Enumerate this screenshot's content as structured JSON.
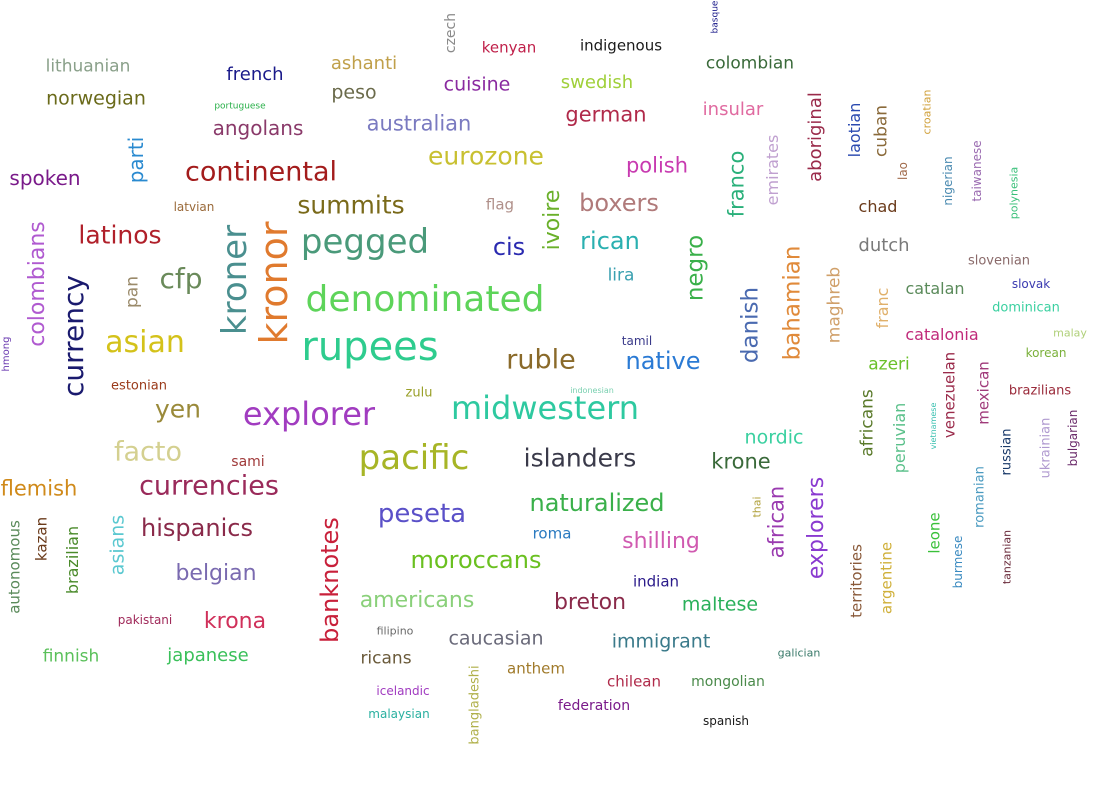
{
  "words": [
    {
      "text": "rupees",
      "color": "#2ecc8e"
    },
    {
      "text": "denominated",
      "color": "#5ed45a"
    },
    {
      "text": "kronor",
      "color": "#e07a2e"
    },
    {
      "text": "kroner",
      "color": "#4a8f8f"
    },
    {
      "text": "pegged",
      "color": "#4a9a7a"
    },
    {
      "text": "explorer",
      "color": "#a13cc0"
    },
    {
      "text": "pacific",
      "color": "#a7b526"
    },
    {
      "text": "midwestern",
      "color": "#2ec9a0"
    },
    {
      "text": "currency",
      "color": "#1a1a6e"
    },
    {
      "text": "asian",
      "color": "#d4c21a"
    },
    {
      "text": "continental",
      "color": "#a31c1c"
    },
    {
      "text": "ruble",
      "color": "#8a6a2a"
    },
    {
      "text": "native",
      "color": "#2a7ad4"
    },
    {
      "text": "islanders",
      "color": "#3a3a4a"
    },
    {
      "text": "currencies",
      "color": "#9a2a5a"
    },
    {
      "text": "cfp",
      "color": "#6a8a5a"
    },
    {
      "text": "summits",
      "color": "#7a6a1a"
    },
    {
      "text": "eurozone",
      "color": "#c8c030"
    },
    {
      "text": "latinos",
      "color": "#b0202a"
    },
    {
      "text": "colombians",
      "color": "#b05ad0"
    },
    {
      "text": "yen",
      "color": "#9a8a3a"
    },
    {
      "text": "facto",
      "color": "#d4d090"
    },
    {
      "text": "naturalized",
      "color": "#3ab04a"
    },
    {
      "text": "peseta",
      "color": "#5a50c8"
    },
    {
      "text": "banknotes",
      "color": "#c8203a"
    },
    {
      "text": "hispanics",
      "color": "#8a2a4a"
    },
    {
      "text": "moroccans",
      "color": "#6ac020"
    },
    {
      "text": "cis",
      "color": "#2a2ab0"
    },
    {
      "text": "rican",
      "color": "#2ab0b0"
    },
    {
      "text": "boxers",
      "color": "#b07a7a"
    },
    {
      "text": "ivoire",
      "color": "#6ab02a"
    },
    {
      "text": "negro",
      "color": "#3ab04a"
    },
    {
      "text": "danish",
      "color": "#4a6ab0"
    },
    {
      "text": "bahamian",
      "color": "#e08a3a"
    },
    {
      "text": "franco",
      "color": "#2ab07a"
    },
    {
      "text": "explorers",
      "color": "#8a3ad0"
    },
    {
      "text": "african",
      "color": "#9a3ab0"
    },
    {
      "text": "shilling",
      "color": "#d05ab0"
    },
    {
      "text": "breton",
      "color": "#8a2a4a"
    },
    {
      "text": "americans",
      "color": "#8ad07a"
    },
    {
      "text": "krona",
      "color": "#d0305a"
    },
    {
      "text": "belgian",
      "color": "#7a6ab0"
    },
    {
      "text": "flemish",
      "color": "#d08a1a"
    },
    {
      "text": "asians",
      "color": "#5ac8d0"
    },
    {
      "text": "australian",
      "color": "#7a7ac0"
    },
    {
      "text": "german",
      "color": "#b02a4a"
    },
    {
      "text": "cuisine",
      "color": "#8a2aa0"
    },
    {
      "text": "polish",
      "color": "#c83ab0"
    },
    {
      "text": "krone",
      "color": "#3a6a3a"
    },
    {
      "text": "nordic",
      "color": "#3ad0a0"
    },
    {
      "text": "immigrant",
      "color": "#3a7a8a"
    },
    {
      "text": "caucasian",
      "color": "#6a6a7a"
    },
    {
      "text": "maltese",
      "color": "#2ab05a"
    },
    {
      "text": "japanese",
      "color": "#3ac05a"
    },
    {
      "text": "finnish",
      "color": "#5ac05a"
    },
    {
      "text": "angolans",
      "color": "#8a3a6a"
    },
    {
      "text": "norwegian",
      "color": "#6a6a1a"
    },
    {
      "text": "lithuanian",
      "color": "#8aa08a"
    },
    {
      "text": "french",
      "color": "#1a1a8a"
    },
    {
      "text": "spoken",
      "color": "#7a1a8a"
    },
    {
      "text": "parti",
      "color": "#2a8ad0"
    },
    {
      "text": "peso",
      "color": "#6a6a4a"
    },
    {
      "text": "ashanti",
      "color": "#c0a04a"
    },
    {
      "text": "swedish",
      "color": "#a0d03a"
    },
    {
      "text": "insular",
      "color": "#e06aa0"
    },
    {
      "text": "colombian",
      "color": "#3a6a3a"
    },
    {
      "text": "aboriginal",
      "color": "#9a2a4a"
    },
    {
      "text": "emirates",
      "color": "#c0a0d0"
    },
    {
      "text": "laotian",
      "color": "#2a4ab0"
    },
    {
      "text": "cuban",
      "color": "#8a6a3a"
    },
    {
      "text": "maghreb",
      "color": "#d0a06a"
    },
    {
      "text": "dutch",
      "color": "#7a7a7a"
    },
    {
      "text": "chad",
      "color": "#6a3a1a"
    },
    {
      "text": "franc",
      "color": "#e0b06a"
    },
    {
      "text": "catalan",
      "color": "#5a8a5a"
    },
    {
      "text": "catalonia",
      "color": "#c02a7a"
    },
    {
      "text": "azeri",
      "color": "#6ac02a"
    },
    {
      "text": "africans",
      "color": "#5a7a2a"
    },
    {
      "text": "peruvian",
      "color": "#5ac08a"
    },
    {
      "text": "venezuelan",
      "color": "#9a2a4a"
    },
    {
      "text": "mexican",
      "color": "#a03a7a"
    },
    {
      "text": "territories",
      "color": "#8a5a3a"
    },
    {
      "text": "argentine",
      "color": "#d0b03a"
    },
    {
      "text": "leone",
      "color": "#3ac03a"
    },
    {
      "text": "burmese",
      "color": "#3a8ac0"
    },
    {
      "text": "romanian",
      "color": "#4a9ac0"
    },
    {
      "text": "russian",
      "color": "#1a3a6a"
    },
    {
      "text": "ukrainian",
      "color": "#b09ad0"
    },
    {
      "text": "bulgarian",
      "color": "#6a2a6a"
    },
    {
      "text": "tanzanian",
      "color": "#6a2a3a"
    },
    {
      "text": "brazilians",
      "color": "#9a2a3a"
    },
    {
      "text": "korean",
      "color": "#7ab03a"
    },
    {
      "text": "malay",
      "color": "#b0d07a"
    },
    {
      "text": "dominican",
      "color": "#3ad0a0"
    },
    {
      "text": "slovak",
      "color": "#3a3ab0"
    },
    {
      "text": "slovenian",
      "color": "#8a6a6a"
    },
    {
      "text": "nigerian",
      "color": "#4a8ab0"
    },
    {
      "text": "taiwanese",
      "color": "#9a6ab0"
    },
    {
      "text": "polynesia",
      "color": "#3ac07a"
    },
    {
      "text": "croatian",
      "color": "#d0a03a"
    },
    {
      "text": "lao",
      "color": "#a06a4a"
    },
    {
      "text": "basque",
      "color": "#1a1a8a"
    },
    {
      "text": "indigenous",
      "color": "#1a1a1a"
    },
    {
      "text": "kenyan",
      "color": "#c0204a"
    },
    {
      "text": "czech",
      "color": "#8a8a8a"
    },
    {
      "text": "portuguese",
      "color": "#2ab04a"
    },
    {
      "text": "latvian",
      "color": "#9a6a3a"
    },
    {
      "text": "flag",
      "color": "#b0908a"
    },
    {
      "text": "lira",
      "color": "#3aa0b0"
    },
    {
      "text": "tamil",
      "color": "#3a3a8a"
    },
    {
      "text": "indonesian",
      "color": "#7ad0b0"
    },
    {
      "text": "pan",
      "color": "#9a8a6a"
    },
    {
      "text": "hmong",
      "color": "#6a3ab0"
    },
    {
      "text": "estonian",
      "color": "#9a3a1a"
    },
    {
      "text": "zulu",
      "color": "#9aa02a"
    },
    {
      "text": "sami",
      "color": "#a03a3a"
    },
    {
      "text": "kazan",
      "color": "#6a3a1a"
    },
    {
      "text": "autonomous",
      "color": "#5a8a5a"
    },
    {
      "text": "brazilian",
      "color": "#4a8a2a"
    },
    {
      "text": "pakistani",
      "color": "#a02a5a"
    },
    {
      "text": "filipino",
      "color": "#6a6a6a"
    },
    {
      "text": "ricans",
      "color": "#6a5a3a"
    },
    {
      "text": "icelandic",
      "color": "#a03ac0"
    },
    {
      "text": "malaysian",
      "color": "#2ab0a0"
    },
    {
      "text": "bangladeshi",
      "color": "#b0b04a"
    },
    {
      "text": "anthem",
      "color": "#a07a2a"
    },
    {
      "text": "federation",
      "color": "#7a1a8a"
    },
    {
      "text": "chilean",
      "color": "#b02a4a"
    },
    {
      "text": "mongolian",
      "color": "#4a8a4a"
    },
    {
      "text": "spanish",
      "color": "#1a1a1a"
    },
    {
      "text": "galician",
      "color": "#3a7a6a"
    },
    {
      "text": "indian",
      "color": "#2a1a8a"
    },
    {
      "text": "roma",
      "color": "#2a7ac0"
    },
    {
      "text": "thai",
      "color": "#b0a03a"
    },
    {
      "text": "vietnamese",
      "color": "#3ac0b0"
    }
  ]
}
